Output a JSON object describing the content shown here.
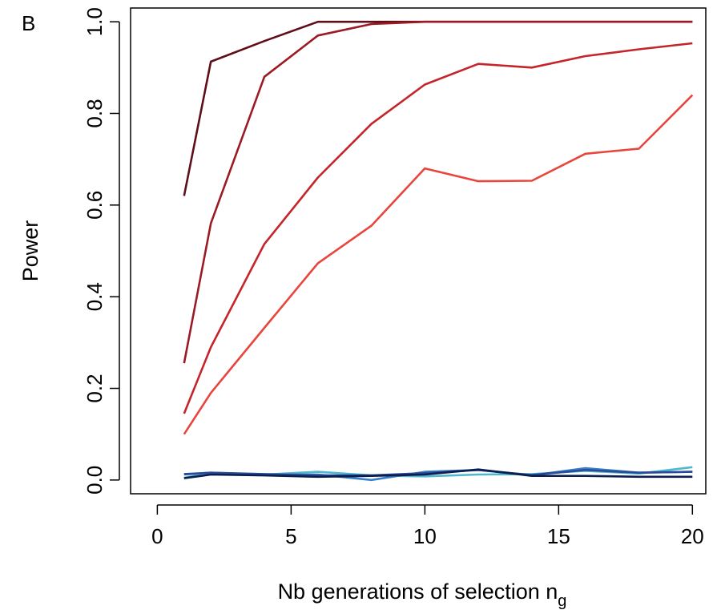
{
  "panel_label": "B",
  "chart_data": {
    "type": "line",
    "xlabel": "Nb generations of selection n",
    "xlabel_subscript": "g",
    "ylabel": "Power",
    "xlim": [
      -1,
      20.5
    ],
    "ylim": [
      -0.03,
      1.03
    ],
    "x_ticks": [
      0,
      5,
      10,
      15,
      20
    ],
    "y_ticks": [
      0.0,
      0.2,
      0.4,
      0.6,
      0.8,
      1.0
    ],
    "x_tick_labels": [
      "0",
      "5",
      "10",
      "15",
      "20"
    ],
    "y_tick_labels": [
      "0.0",
      "0.2",
      "0.4",
      "0.6",
      "0.8",
      "1.0"
    ],
    "grid": false,
    "x": [
      1,
      2,
      4,
      6,
      8,
      10,
      12,
      14,
      16,
      18,
      20
    ],
    "series": [
      {
        "color": "#5e0f19",
        "values": [
          0.62,
          0.913,
          0.958,
          1.0,
          1.0,
          1.0,
          1.0,
          1.0,
          1.0,
          1.0,
          1.0
        ]
      },
      {
        "color": "#9b1b24",
        "values": [
          0.255,
          0.56,
          0.88,
          0.97,
          0.995,
          1.0,
          1.0,
          1.0,
          1.0,
          1.0,
          1.0
        ]
      },
      {
        "color": "#c4252b",
        "values": [
          0.145,
          0.29,
          0.515,
          0.66,
          0.777,
          0.863,
          0.908,
          0.9,
          0.925,
          0.94,
          0.953
        ]
      },
      {
        "color": "#e8453c",
        "values": [
          0.1,
          0.19,
          0.332,
          0.473,
          0.555,
          0.68,
          0.652,
          0.653,
          0.712,
          0.723,
          0.84
        ]
      },
      {
        "color": "#4fb8d0",
        "values": [
          0.005,
          0.015,
          0.012,
          0.018,
          0.01,
          0.008,
          0.012,
          0.013,
          0.02,
          0.014,
          0.028
        ]
      },
      {
        "color": "#3b7fc4",
        "values": [
          0.012,
          0.016,
          0.012,
          0.012,
          0.0,
          0.018,
          0.022,
          0.01,
          0.026,
          0.016,
          0.018
        ]
      },
      {
        "color": "#2a4a9a",
        "values": [
          0.013,
          0.016,
          0.013,
          0.01,
          0.01,
          0.015,
          0.022,
          0.011,
          0.022,
          0.016,
          0.018
        ]
      },
      {
        "color": "#0c1d4f",
        "values": [
          0.004,
          0.012,
          0.01,
          0.007,
          0.009,
          0.012,
          0.023,
          0.009,
          0.009,
          0.007,
          0.007
        ]
      }
    ]
  }
}
